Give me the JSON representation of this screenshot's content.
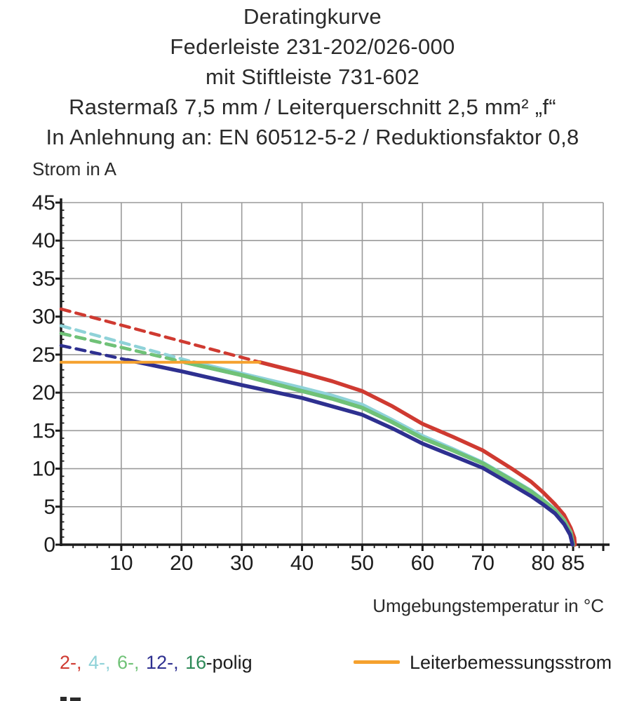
{
  "title_lines": [
    "Deratingkurve",
    "Federleiste 231-202/026-000",
    "mit Stiftleiste 731-602",
    "Rastermaß 7,5 mm / Leiterquerschnitt 2,5 mm² „f“",
    "In Anlehnung an: EN 60512-5-2 / Reduktionsfaktor 0,8"
  ],
  "axes": {
    "y_label": "Strom in A",
    "x_label": "Umgebungstemperatur in °C",
    "y_ticks": [
      0,
      5,
      10,
      15,
      20,
      25,
      30,
      35,
      40,
      45
    ],
    "x_ticks": [
      10,
      20,
      30,
      40,
      50,
      60,
      70,
      80,
      85
    ]
  },
  "legend": {
    "pole_tokens": [
      {
        "text": "2-,",
        "color": "#cf3a31"
      },
      {
        "text": "4-,",
        "color": "#8fd2d8"
      },
      {
        "text": "6-,",
        "color": "#70c277"
      },
      {
        "text": "12-,",
        "color": "#2e3090"
      },
      {
        "text": "16",
        "color": "#2e8a58"
      }
    ],
    "pole_suffix": "-polig",
    "rated_label": "Leiterbemessungsstrom",
    "rated_color": "#f5a12e"
  },
  "chart_data": {
    "type": "line",
    "title": "Deratingkurve Federleiste 231-202/026-000 mit Stiftleiste 731-602",
    "xlabel": "Umgebungstemperatur in °C",
    "ylabel": "Strom in A",
    "xlim": [
      0,
      90
    ],
    "ylim": [
      0,
      45
    ],
    "grid": true,
    "x_gridline_step": 10,
    "y_gridline_step": 5,
    "note": "Dashed segments lie above the conductor rated current (orange line at 24 A, drawn from 0 to 33 °C); solid curves apply beyond it. All curves fall to 0 A at about 85 °C. The 16-polig curve coincides with the 6-polig curve.",
    "series": [
      {
        "name": "2-polig",
        "color": "#cf3a31",
        "dashed": [
          [
            0,
            31
          ],
          [
            33,
            24
          ]
        ],
        "solid": [
          [
            33,
            24
          ],
          [
            40,
            22.6
          ],
          [
            45,
            21.5
          ],
          [
            50,
            20.2
          ],
          [
            55,
            18.2
          ],
          [
            60,
            15.9
          ],
          [
            65,
            14.2
          ],
          [
            70,
            12.4
          ],
          [
            75,
            9.9
          ],
          [
            78,
            8.3
          ],
          [
            80,
            6.9
          ],
          [
            82,
            5.3
          ],
          [
            83.5,
            3.9
          ],
          [
            84.6,
            2.2
          ],
          [
            85.2,
            0.9
          ],
          [
            85.3,
            0
          ]
        ]
      },
      {
        "name": "4-polig",
        "color": "#8fd2d8",
        "dashed": [
          [
            0,
            28.8
          ],
          [
            22,
            24
          ]
        ],
        "solid": [
          [
            22,
            24
          ],
          [
            30,
            22.5
          ],
          [
            40,
            20.6
          ],
          [
            45,
            19.6
          ],
          [
            50,
            18.4
          ],
          [
            55,
            16.4
          ],
          [
            60,
            14.3
          ],
          [
            65,
            12.6
          ],
          [
            70,
            10.8
          ],
          [
            75,
            8.5
          ],
          [
            78,
            7.1
          ],
          [
            80,
            5.9
          ],
          [
            82,
            4.6
          ],
          [
            83.5,
            3.2
          ],
          [
            84.6,
            1.6
          ],
          [
            85,
            0
          ]
        ]
      },
      {
        "name": "16-polig",
        "color": "#2e8a58",
        "coincides_with": "6-polig",
        "dashed": [
          [
            0,
            27.8
          ],
          [
            20.5,
            24
          ]
        ],
        "solid": [
          [
            20.5,
            24
          ],
          [
            30,
            22.3
          ],
          [
            40,
            20.2
          ],
          [
            45,
            19.2
          ],
          [
            50,
            18.0
          ],
          [
            55,
            16.1
          ],
          [
            60,
            14.0
          ],
          [
            65,
            12.4
          ],
          [
            70,
            10.7
          ],
          [
            75,
            8.4
          ],
          [
            78,
            7.0
          ],
          [
            80,
            5.8
          ],
          [
            82,
            4.5
          ],
          [
            83.5,
            3.1
          ],
          [
            84.6,
            1.5
          ],
          [
            85,
            0
          ]
        ]
      },
      {
        "name": "6-polig",
        "color": "#70c277",
        "dashed": [
          [
            0,
            27.8
          ],
          [
            20.5,
            24
          ]
        ],
        "solid": [
          [
            20.5,
            24
          ],
          [
            30,
            22.3
          ],
          [
            40,
            20.2
          ],
          [
            45,
            19.2
          ],
          [
            50,
            18.0
          ],
          [
            55,
            16.1
          ],
          [
            60,
            14.0
          ],
          [
            65,
            12.4
          ],
          [
            70,
            10.7
          ],
          [
            75,
            8.4
          ],
          [
            78,
            7.0
          ],
          [
            80,
            5.8
          ],
          [
            82,
            4.5
          ],
          [
            83.5,
            3.1
          ],
          [
            84.6,
            1.5
          ],
          [
            85,
            0
          ]
        ]
      },
      {
        "name": "12-polig",
        "color": "#2e3090",
        "dashed": [
          [
            0,
            26.2
          ],
          [
            11,
            24.3
          ]
        ],
        "solid": [
          [
            11,
            24.3
          ],
          [
            20,
            22.8
          ],
          [
            30,
            21.0
          ],
          [
            40,
            19.3
          ],
          [
            50,
            17.1
          ],
          [
            55,
            15.3
          ],
          [
            60,
            13.3
          ],
          [
            65,
            11.7
          ],
          [
            70,
            10.1
          ],
          [
            75,
            7.8
          ],
          [
            78,
            6.4
          ],
          [
            80,
            5.3
          ],
          [
            82,
            4.1
          ],
          [
            83.5,
            2.7
          ],
          [
            84.5,
            1.3
          ],
          [
            84.9,
            0
          ]
        ]
      },
      {
        "name": "Leiterbemessungsstrom",
        "color": "#f5a12e",
        "width": 4,
        "solid": [
          [
            0,
            24
          ],
          [
            33,
            24
          ]
        ]
      }
    ]
  }
}
